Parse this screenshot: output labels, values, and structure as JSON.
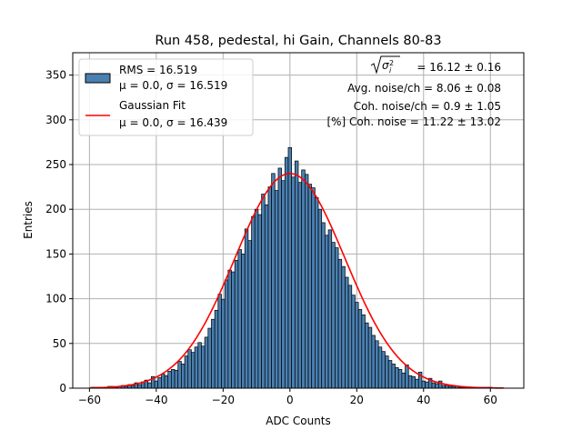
{
  "chart_data": {
    "type": "bar",
    "title": "Run 458, pedestal, hi Gain, Channels 80-83",
    "xlabel": "ADC Counts",
    "ylabel": "Entries",
    "xlim": [
      -65,
      70
    ],
    "ylim": [
      0,
      375
    ],
    "xticks": [
      -60,
      -40,
      -20,
      0,
      20,
      40,
      60
    ],
    "yticks": [
      0,
      50,
      100,
      150,
      200,
      250,
      300,
      350
    ],
    "grid": true,
    "legend_position": "top-left",
    "colors": {
      "bars": "#4a7fb0",
      "bar_edge": "#000000",
      "fit": "#ff0000",
      "grid": "#b0b0b0"
    },
    "legend": {
      "hist_line1": "RMS = 16.519",
      "hist_line2": "μ = 0.0, σ = 16.519",
      "fit_line1": "Gaussian Fit",
      "fit_line2": "μ = 0.0, σ = 16.439"
    },
    "annotations": {
      "sigma_value": "= 16.12 ± 0.16",
      "avg_noise": "Avg. noise/ch = 8.06 ± 0.08",
      "coh_noise": "Coh. noise/ch = 0.9 ± 1.05",
      "coh_percent": "[%] Coh. noise = 11.22 ± 13.02"
    },
    "histogram": {
      "bin_width": 1,
      "series": [
        {
          "x": -59,
          "y": 1
        },
        {
          "x": -58,
          "y": 1
        },
        {
          "x": -57,
          "y": 1
        },
        {
          "x": -56,
          "y": 1
        },
        {
          "x": -55,
          "y": 1
        },
        {
          "x": -54,
          "y": 2
        },
        {
          "x": -53,
          "y": 2
        },
        {
          "x": -52,
          "y": 1
        },
        {
          "x": -51,
          "y": 2
        },
        {
          "x": -50,
          "y": 3
        },
        {
          "x": -49,
          "y": 2
        },
        {
          "x": -48,
          "y": 4
        },
        {
          "x": -47,
          "y": 3
        },
        {
          "x": -46,
          "y": 6
        },
        {
          "x": -45,
          "y": 4
        },
        {
          "x": -44,
          "y": 7
        },
        {
          "x": -43,
          "y": 9
        },
        {
          "x": -42,
          "y": 6
        },
        {
          "x": -41,
          "y": 13
        },
        {
          "x": -40,
          "y": 8
        },
        {
          "x": -39,
          "y": 12
        },
        {
          "x": -38,
          "y": 16
        },
        {
          "x": -37,
          "y": 14
        },
        {
          "x": -36,
          "y": 19
        },
        {
          "x": -35,
          "y": 21
        },
        {
          "x": -34,
          "y": 20
        },
        {
          "x": -33,
          "y": 30
        },
        {
          "x": -32,
          "y": 27
        },
        {
          "x": -31,
          "y": 36
        },
        {
          "x": -30,
          "y": 43
        },
        {
          "x": -29,
          "y": 40
        },
        {
          "x": -28,
          "y": 46
        },
        {
          "x": -27,
          "y": 51
        },
        {
          "x": -26,
          "y": 47
        },
        {
          "x": -25,
          "y": 57
        },
        {
          "x": -24,
          "y": 67
        },
        {
          "x": -23,
          "y": 77
        },
        {
          "x": -22,
          "y": 87
        },
        {
          "x": -21,
          "y": 105
        },
        {
          "x": -20,
          "y": 99
        },
        {
          "x": -19,
          "y": 121
        },
        {
          "x": -18,
          "y": 132
        },
        {
          "x": -17,
          "y": 130
        },
        {
          "x": -16,
          "y": 143
        },
        {
          "x": -15,
          "y": 155
        },
        {
          "x": -14,
          "y": 150
        },
        {
          "x": -13,
          "y": 178
        },
        {
          "x": -12,
          "y": 165
        },
        {
          "x": -11,
          "y": 192
        },
        {
          "x": -10,
          "y": 200
        },
        {
          "x": -9,
          "y": 194
        },
        {
          "x": -8,
          "y": 217
        },
        {
          "x": -7,
          "y": 205
        },
        {
          "x": -6,
          "y": 225
        },
        {
          "x": -5,
          "y": 240
        },
        {
          "x": -4,
          "y": 221
        },
        {
          "x": -3,
          "y": 246
        },
        {
          "x": -2,
          "y": 232
        },
        {
          "x": -1,
          "y": 258
        },
        {
          "x": 0,
          "y": 269
        },
        {
          "x": 1,
          "y": 236
        },
        {
          "x": 2,
          "y": 254
        },
        {
          "x": 3,
          "y": 230
        },
        {
          "x": 4,
          "y": 244
        },
        {
          "x": 5,
          "y": 239
        },
        {
          "x": 6,
          "y": 228
        },
        {
          "x": 7,
          "y": 224
        },
        {
          "x": 8,
          "y": 213
        },
        {
          "x": 9,
          "y": 200
        },
        {
          "x": 10,
          "y": 185
        },
        {
          "x": 11,
          "y": 171
        },
        {
          "x": 12,
          "y": 177
        },
        {
          "x": 13,
          "y": 163
        },
        {
          "x": 14,
          "y": 157
        },
        {
          "x": 15,
          "y": 144
        },
        {
          "x": 16,
          "y": 136
        },
        {
          "x": 17,
          "y": 124
        },
        {
          "x": 18,
          "y": 115
        },
        {
          "x": 19,
          "y": 104
        },
        {
          "x": 20,
          "y": 96
        },
        {
          "x": 21,
          "y": 88
        },
        {
          "x": 22,
          "y": 82
        },
        {
          "x": 23,
          "y": 73
        },
        {
          "x": 24,
          "y": 68
        },
        {
          "x": 25,
          "y": 59
        },
        {
          "x": 26,
          "y": 53
        },
        {
          "x": 27,
          "y": 46
        },
        {
          "x": 28,
          "y": 41
        },
        {
          "x": 29,
          "y": 36
        },
        {
          "x": 30,
          "y": 31
        },
        {
          "x": 31,
          "y": 27
        },
        {
          "x": 32,
          "y": 23
        },
        {
          "x": 33,
          "y": 21
        },
        {
          "x": 34,
          "y": 17
        },
        {
          "x": 35,
          "y": 26
        },
        {
          "x": 36,
          "y": 14
        },
        {
          "x": 37,
          "y": 13
        },
        {
          "x": 38,
          "y": 10
        },
        {
          "x": 39,
          "y": 18
        },
        {
          "x": 40,
          "y": 8
        },
        {
          "x": 41,
          "y": 7
        },
        {
          "x": 42,
          "y": 11
        },
        {
          "x": 43,
          "y": 6
        },
        {
          "x": 44,
          "y": 5
        },
        {
          "x": 45,
          "y": 8
        },
        {
          "x": 46,
          "y": 3
        },
        {
          "x": 47,
          "y": 3
        },
        {
          "x": 48,
          "y": 2
        },
        {
          "x": 49,
          "y": 2
        },
        {
          "x": 50,
          "y": 2
        },
        {
          "x": 51,
          "y": 1
        },
        {
          "x": 52,
          "y": 1
        },
        {
          "x": 53,
          "y": 1
        },
        {
          "x": 54,
          "y": 1
        },
        {
          "x": 55,
          "y": 1
        },
        {
          "x": 56,
          "y": 1
        },
        {
          "x": 57,
          "y": 1
        },
        {
          "x": 58,
          "y": 1
        },
        {
          "x": 59,
          "y": 1
        },
        {
          "x": 60,
          "y": 1
        }
      ]
    },
    "fit": {
      "mu": 0.0,
      "sigma": 16.439,
      "peak": 240
    }
  }
}
